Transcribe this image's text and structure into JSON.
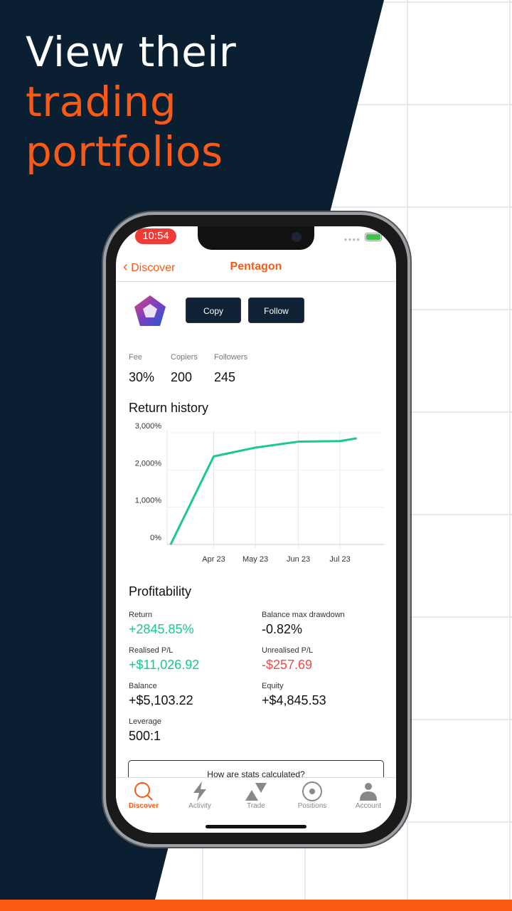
{
  "promo": {
    "line1": "View their",
    "line2": "trading",
    "line3": "portfolios"
  },
  "status": {
    "time": "10:54"
  },
  "nav": {
    "back_label": "Discover",
    "title": "Pentagon"
  },
  "actions": {
    "copy": "Copy",
    "follow": "Follow"
  },
  "stats": [
    {
      "label": "Fee",
      "value": "30%"
    },
    {
      "label": "Copiers",
      "value": "200"
    },
    {
      "label": "Followers",
      "value": "245"
    }
  ],
  "return_history": {
    "title": "Return history"
  },
  "chart_data": {
    "type": "line",
    "title": "",
    "xlabel": "",
    "ylabel": "",
    "x": [
      "2023-03-01",
      "2023-04-01",
      "2023-05-01",
      "2023-06-01",
      "2023-07-01",
      "2023-07-13"
    ],
    "values": [
      0,
      2365,
      2600,
      2760,
      2775,
      2850
    ],
    "ylim": [
      0,
      3000
    ],
    "yticks": [
      "0%",
      "1,000%",
      "2,000%",
      "3,000%"
    ],
    "xticks": [
      "Apr 23",
      "May 23",
      "Jun 23",
      "Jul 23"
    ],
    "grid": true,
    "color": "#17c98a"
  },
  "profitability": {
    "title": "Profitability",
    "items": [
      {
        "label": "Return",
        "value": "+2845.85%",
        "tone": "g"
      },
      {
        "label": "Balance max drawdown",
        "value": "-0.82%",
        "tone": ""
      },
      {
        "label": "Realised P/L",
        "value": "+$11,026.92",
        "tone": "g"
      },
      {
        "label": "Unrealised P/L",
        "value": "-$257.69",
        "tone": "r"
      },
      {
        "label": "Balance",
        "value": "+$5,103.22",
        "tone": ""
      },
      {
        "label": "Equity",
        "value": "+$4,845.53",
        "tone": ""
      },
      {
        "label": "Leverage",
        "value": "500:1",
        "tone": ""
      }
    ]
  },
  "how_label": "How are stats calculated?",
  "tabs": [
    {
      "label": "Discover",
      "icon": "search-icon",
      "active": true
    },
    {
      "label": "Activity",
      "icon": "lightning-icon"
    },
    {
      "label": "Trade",
      "icon": "triangles-icon"
    },
    {
      "label": "Positions",
      "icon": "target-icon"
    },
    {
      "label": "Account",
      "icon": "person-icon"
    }
  ],
  "colors": {
    "accent": "#fa5a14",
    "navy": "#0b1f33",
    "green": "#17c98a",
    "red": "#ef4a4a"
  }
}
